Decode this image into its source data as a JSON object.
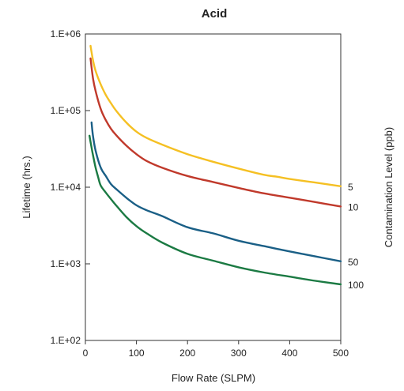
{
  "chart_data": {
    "type": "line",
    "title": "Acid",
    "xlabel": "Flow Rate (SLPM)",
    "ylabel": "Lifetime (hrs.)",
    "y2label": "Contamination Level (ppb)",
    "xlim": [
      0,
      500
    ],
    "ylim": [
      100,
      1000000
    ],
    "yscale": "log",
    "xticks": [
      0,
      100,
      200,
      300,
      400,
      500
    ],
    "xtick_labels": [
      "0",
      "100",
      "200",
      "300",
      "400",
      "500"
    ],
    "yticks": [
      100,
      1000,
      10000,
      100000,
      1000000
    ],
    "ytick_labels": [
      "1.E+02",
      "1.E+03",
      "1.E+04",
      "1.E+05",
      "1.E+06"
    ],
    "grid": false,
    "series": [
      {
        "name": "5",
        "color": "#f5c023",
        "x": [
          10,
          15,
          20,
          30,
          40,
          50,
          60,
          80,
          100,
          120,
          150,
          200,
          250,
          300,
          350,
          375,
          400,
          450,
          500
        ],
        "y": [
          700000,
          450000,
          330000,
          220000,
          160000,
          125000,
          100000,
          70000,
          53000,
          44000,
          36000,
          27000,
          21500,
          17500,
          14500,
          13700,
          12800,
          11500,
          10300
        ]
      },
      {
        "name": "10",
        "color": "#c0392b",
        "x": [
          10,
          15,
          20,
          30,
          40,
          50,
          60,
          80,
          100,
          120,
          150,
          200,
          250,
          300,
          350,
          400,
          450,
          500
        ],
        "y": [
          480000,
          260000,
          180000,
          105000,
          75000,
          58000,
          48000,
          35000,
          27000,
          22000,
          18000,
          14000,
          11700,
          9800,
          8300,
          7300,
          6400,
          5600
        ]
      },
      {
        "name": "50",
        "color": "#1a5f86",
        "x": [
          12,
          15,
          20,
          30,
          40,
          50,
          60,
          80,
          100,
          120,
          150,
          200,
          250,
          300,
          350,
          400,
          450,
          500
        ],
        "y": [
          70000,
          46000,
          30000,
          18000,
          14000,
          11000,
          9500,
          7300,
          5800,
          5000,
          4200,
          3000,
          2500,
          2000,
          1700,
          1450,
          1250,
          1080
        ]
      },
      {
        "name": "100",
        "color": "#1b7a43",
        "x": [
          8,
          12,
          15,
          20,
          25,
          30,
          40,
          50,
          60,
          80,
          100,
          120,
          150,
          200,
          250,
          300,
          350,
          400,
          450,
          500
        ],
        "y": [
          47000,
          33000,
          26000,
          18000,
          13500,
          10500,
          8500,
          7000,
          5800,
          4100,
          3100,
          2500,
          1900,
          1350,
          1100,
          900,
          770,
          680,
          600,
          540
        ]
      }
    ]
  }
}
